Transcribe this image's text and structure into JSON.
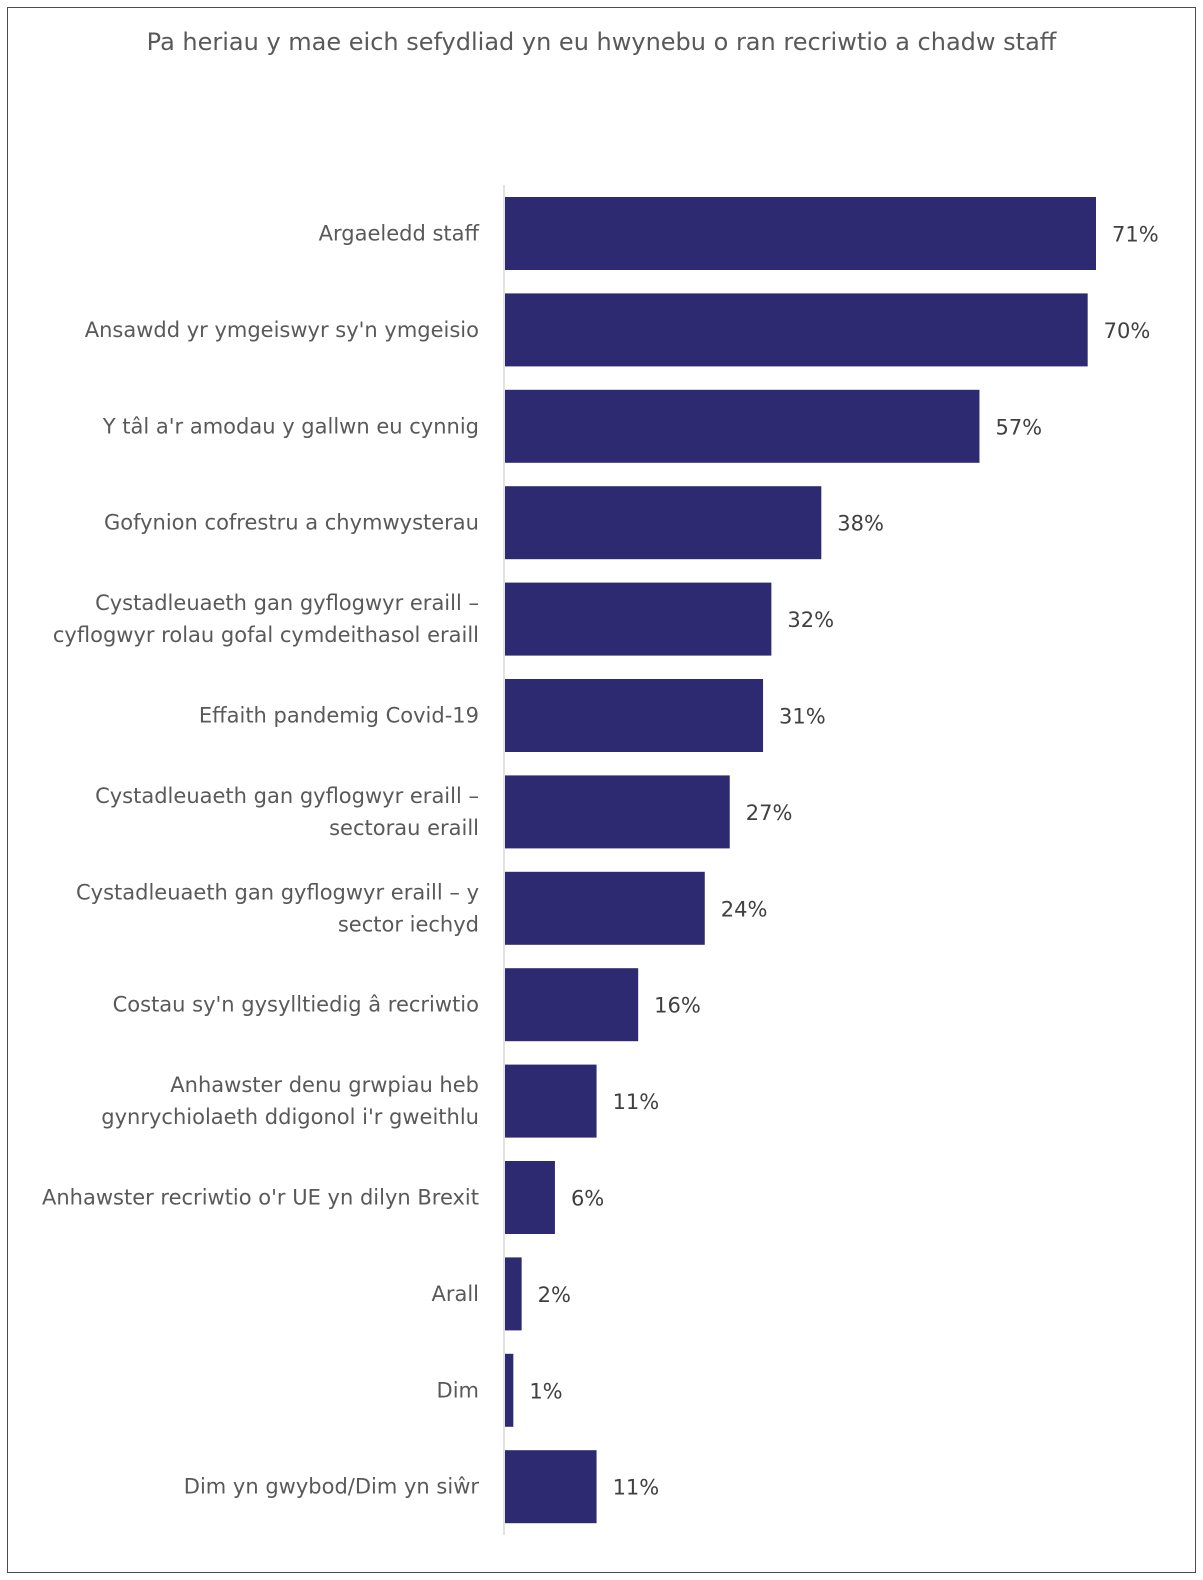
{
  "chart_data": {
    "type": "bar",
    "orientation": "horizontal",
    "title": "Pa heriau y mae eich sefydliad yn eu hwynebu o ran recriwtio a chadw staff",
    "categories": [
      [
        "Argaeledd staff"
      ],
      [
        "Ansawdd yr ymgeiswyr sy'n ymgeisio"
      ],
      [
        "Y tâl a'r amodau y gallwn eu cynnig"
      ],
      [
        "Gofynion cofrestru a chymwysterau"
      ],
      [
        "Cystadleuaeth gan gyflogwyr eraill –",
        "cyflogwyr rolau gofal cymdeithasol eraill"
      ],
      [
        "Effaith pandemig Covid-19"
      ],
      [
        "Cystadleuaeth gan gyflogwyr eraill –",
        "sectorau eraill"
      ],
      [
        "Cystadleuaeth gan gyflogwyr eraill – y",
        "sector iechyd"
      ],
      [
        "Costau sy'n gysylltiedig â recriwtio"
      ],
      [
        "Anhawster denu grwpiau heb",
        "gynrychiolaeth ddigonol i'r gweithlu"
      ],
      [
        "Anhawster recriwtio o'r UE yn dilyn Brexit"
      ],
      [
        "Arall"
      ],
      [
        "Dim"
      ],
      [
        "Dim yn gwybod/Dim yn siŵr"
      ]
    ],
    "values": [
      71,
      70,
      57,
      38,
      32,
      31,
      27,
      24,
      16,
      11,
      6,
      2,
      1,
      11
    ],
    "value_labels": [
      "71%",
      "70%",
      "57%",
      "38%",
      "32%",
      "31%",
      "27%",
      "24%",
      "16%",
      "11%",
      "6%",
      "2%",
      "1%",
      "11%"
    ],
    "unit": "%",
    "xlim": [
      0,
      71
    ],
    "bar_color": "#2e2a72",
    "axis_color": "#d9d9d9",
    "grid": false,
    "legend": "none"
  }
}
